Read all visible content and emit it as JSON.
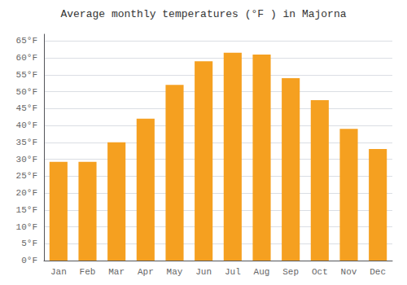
{
  "chart_data": {
    "type": "bar",
    "title": "Average monthly temperatures (°F ) in Majorna",
    "categories": [
      "Jan",
      "Feb",
      "Mar",
      "Apr",
      "May",
      "Jun",
      "Jul",
      "Aug",
      "Sep",
      "Oct",
      "Nov",
      "Dec"
    ],
    "values": [
      29.2,
      29.2,
      35.0,
      42.0,
      52.0,
      59.0,
      61.5,
      61.0,
      54.0,
      47.5,
      39.0,
      33.0
    ],
    "color": "#F5A020",
    "ylim": [
      0,
      67
    ],
    "yticks": [
      {
        "value": 0,
        "label": "0°F"
      },
      {
        "value": 5,
        "label": "5°F"
      },
      {
        "value": 10,
        "label": "10°F"
      },
      {
        "value": 15,
        "label": "15°F"
      },
      {
        "value": 20,
        "label": "20°F"
      },
      {
        "value": 25,
        "label": "25°F"
      },
      {
        "value": 30,
        "label": "30°F"
      },
      {
        "value": 35,
        "label": "35°F"
      },
      {
        "value": 40,
        "label": "40°F"
      },
      {
        "value": 45,
        "label": "45°F"
      },
      {
        "value": 50,
        "label": "50°F"
      },
      {
        "value": 55,
        "label": "55°F"
      },
      {
        "value": 60,
        "label": "60°F"
      },
      {
        "value": 65,
        "label": "65°F"
      }
    ],
    "grid": true
  }
}
